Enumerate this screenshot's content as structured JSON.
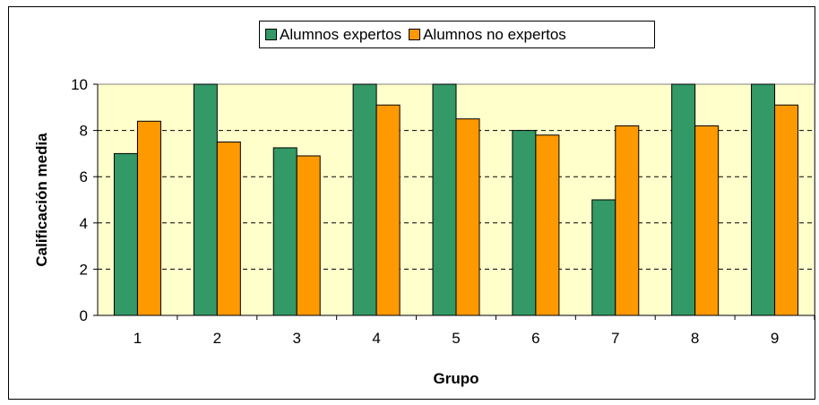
{
  "chart_data": {
    "type": "bar",
    "title": "",
    "xlabel": "Grupo",
    "ylabel": "Calificación media",
    "categories": [
      "1",
      "2",
      "3",
      "4",
      "5",
      "6",
      "7",
      "8",
      "9"
    ],
    "series": [
      {
        "name": "Alumnos expertos",
        "color": "#339966",
        "values": [
          7.0,
          10.0,
          7.25,
          10.0,
          10.0,
          8.0,
          5.0,
          10.0,
          10.0
        ]
      },
      {
        "name": "Alumnos no expertos",
        "color": "#FF9900",
        "values": [
          8.4,
          7.5,
          6.9,
          9.1,
          8.5,
          7.8,
          8.2,
          8.2,
          9.1
        ]
      }
    ],
    "ylim": [
      0,
      10
    ],
    "yticks": [
      "0",
      "2",
      "4",
      "6",
      "8",
      "10"
    ],
    "grid": "horizontal dashed",
    "plot_background": "#FFFFCC",
    "legend_position": "top"
  }
}
